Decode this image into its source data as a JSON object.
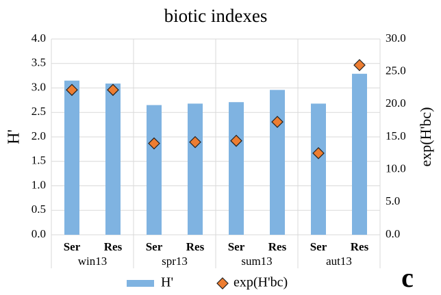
{
  "chart_data": {
    "type": "bar_marker",
    "title": "biotic indexes",
    "y_label": "H'",
    "y2_label": "exp(H'bc)",
    "panel_label": "c",
    "categories": [
      "Ser",
      "Res",
      "Ser",
      "Res",
      "Ser",
      "Res",
      "Ser",
      "Res"
    ],
    "groups": [
      "win13",
      "spr13",
      "sum13",
      "aut13"
    ],
    "series": [
      {
        "name": "H'",
        "color": "#7fb3e1",
        "values": [
          3.15,
          3.09,
          2.65,
          2.68,
          2.71,
          2.96,
          2.68,
          3.29
        ]
      },
      {
        "name": "exp(H'bc)",
        "color": "#ed7d31",
        "axis": "y2",
        "values": [
          22.2,
          22.2,
          14.0,
          14.2,
          14.4,
          17.3,
          12.5,
          26.0
        ]
      }
    ],
    "ylim": [
      0,
      4
    ],
    "yticks": [
      {
        "value": 0,
        "label": "0.0"
      },
      {
        "value": 0.5,
        "label": "0.5"
      },
      {
        "value": 1,
        "label": "1.0"
      },
      {
        "value": 1.5,
        "label": "1.5"
      },
      {
        "value": 2,
        "label": "2.0"
      },
      {
        "value": 2.5,
        "label": "2.5"
      },
      {
        "value": 3,
        "label": "3.0"
      },
      {
        "value": 3.5,
        "label": "3.5"
      },
      {
        "value": 4,
        "label": "4.0"
      }
    ],
    "y2lim": [
      0,
      30
    ],
    "y2ticks": [
      {
        "value": 0,
        "label": "0.0"
      },
      {
        "value": 5,
        "label": "5.0"
      },
      {
        "value": 10,
        "label": "10.0"
      },
      {
        "value": 15,
        "label": "15.0"
      },
      {
        "value": 20,
        "label": "20.0"
      },
      {
        "value": 25,
        "label": "25.0"
      },
      {
        "value": 30,
        "label": "30.0"
      }
    ],
    "grid": true
  }
}
